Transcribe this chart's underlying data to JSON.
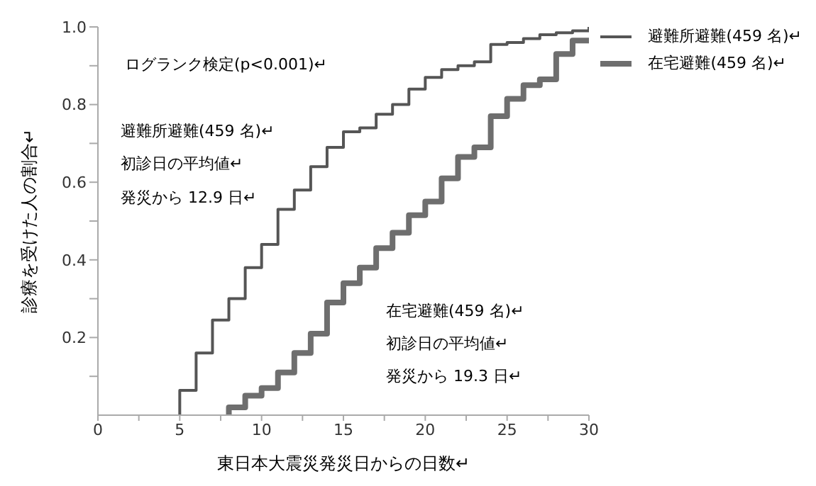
{
  "chart_data": {
    "type": "step",
    "xlabel": "東日本大震災発災日からの日数↵",
    "ylabel": "診療を受けた人の割合↵",
    "xlim": [
      0,
      30
    ],
    "xticks": [
      0,
      {
        "value": 2.5,
        "label": null
      },
      5,
      {
        "value": 7.5,
        "label": null
      },
      10,
      {
        "value": 12.5,
        "label": null
      },
      15,
      {
        "value": 17.5,
        "label": null
      },
      20,
      {
        "value": 22.5,
        "label": null
      },
      25,
      {
        "value": 27.5,
        "label": null
      },
      30
    ],
    "ylim": [
      0,
      1
    ],
    "yticks": [
      {
        "value": 0.1,
        "label": null
      },
      0.2,
      {
        "value": 0.3,
        "label": null
      },
      0.4,
      {
        "value": 0.5,
        "label": null
      },
      0.6,
      {
        "value": 0.7,
        "label": null
      },
      0.8,
      {
        "value": 0.9,
        "label": null
      },
      {
        "value": 1.0,
        "label": "1.0"
      }
    ],
    "grid": false,
    "legend": "top right",
    "line_style": "solid",
    "marker": "none",
    "series": [
      {
        "name": "避難所避難(459 名)↵",
        "color": "#555555",
        "x": [
          5,
          5,
          6,
          7,
          8,
          9,
          10,
          11,
          12,
          13,
          14,
          15,
          16,
          17,
          18,
          19,
          20,
          21,
          22,
          23,
          24,
          25,
          26,
          27,
          28,
          29,
          30
        ],
        "values": [
          0,
          0.064,
          0.16,
          0.245,
          0.3,
          0.38,
          0.44,
          0.53,
          0.58,
          0.64,
          0.69,
          0.73,
          0.74,
          0.775,
          0.8,
          0.84,
          0.87,
          0.89,
          0.9,
          0.91,
          0.955,
          0.96,
          0.97,
          0.98,
          0.985,
          0.99,
          1.0
        ]
      },
      {
        "name": "在宅避難(459 名)↵",
        "color": "#6e6e6e",
        "x": [
          8,
          8,
          9,
          10,
          11,
          12,
          13,
          14,
          15,
          16,
          17,
          18,
          19,
          20,
          21,
          22,
          23,
          24,
          25,
          26,
          27,
          28,
          29,
          30
        ],
        "values": [
          0,
          0.02,
          0.05,
          0.07,
          0.11,
          0.16,
          0.21,
          0.29,
          0.34,
          0.38,
          0.43,
          0.47,
          0.515,
          0.55,
          0.61,
          0.665,
          0.69,
          0.77,
          0.815,
          0.85,
          0.865,
          0.93,
          0.965,
          0.97
        ]
      }
    ],
    "annotations": [
      "ログランク検定(p<0.001)↵",
      "避難所避難(459 名)↵",
      "初診日の平均値↵",
      "発災から 12.9 日↵",
      "在宅避難(459 名)↵",
      "初診日の平均値↵",
      "発災から 19.3 日↵"
    ]
  }
}
